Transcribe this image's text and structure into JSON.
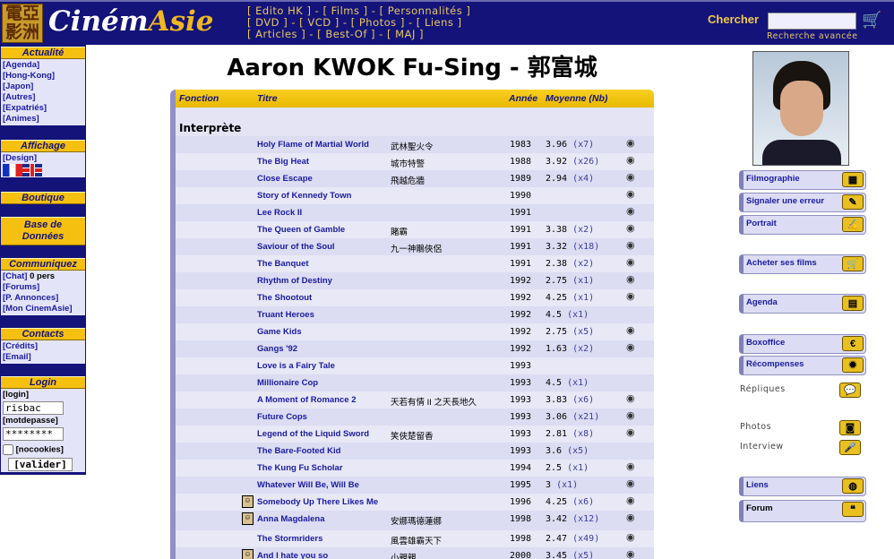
{
  "header": {
    "logo_seal": "電亞影洲",
    "logo_text_a": "Ciném",
    "logo_text_b": "Asie",
    "nav": [
      [
        "Edito HK",
        "Films",
        "Personnalités"
      ],
      [
        "DVD",
        "VCD",
        "Photos",
        "Liens"
      ],
      [
        "Articles",
        "Best-Of",
        "MAJ"
      ]
    ],
    "search_label": "Chercher",
    "search_value": "",
    "advanced_search": "Recherche avancée"
  },
  "sidebar": {
    "actualite": {
      "title": "Actualité",
      "items": [
        "[Agenda]",
        "[Hong-Kong]",
        "[Japon]",
        "[Autres]",
        "[Expatriés]",
        "[Animes]"
      ]
    },
    "affichage": {
      "title": "Affichage",
      "items": [
        "[Design]"
      ]
    },
    "boutique": {
      "title": "Boutique"
    },
    "base": {
      "title": "Base de Données"
    },
    "communiquez": {
      "title": "Communiquez",
      "chat": "[Chat]",
      "chat_count": "0 pers",
      "items": [
        "[Forums]",
        "[P. Annonces]",
        "[Mon CinemAsie]"
      ]
    },
    "contacts": {
      "title": "Contacts",
      "items": [
        "[Crédits]",
        "[Email]"
      ]
    },
    "login": {
      "title": "Login",
      "login_label": "[login]",
      "login_value": "risbac",
      "password_label": "[motdepasse]",
      "password_value": "********",
      "nocookies": "[nocookies]",
      "submit": "[valider]"
    }
  },
  "main": {
    "title": "Aaron KWOK Fu-Sing - 郭富城",
    "columns": [
      "Fonction",
      "Titre",
      "Année",
      "Moyenne (Nb)"
    ],
    "section": "Interprète",
    "rows": [
      {
        "title": "Holy Flame of Martial World",
        "chinese": "武林聖火令",
        "year": "1983",
        "avg": "3.96",
        "nb": "(x7)",
        "eye": true,
        "pic": false
      },
      {
        "title": "The Big Heat",
        "chinese": "城市特警",
        "year": "1988",
        "avg": "3.92",
        "nb": "(x26)",
        "eye": true,
        "pic": false
      },
      {
        "title": "Close Escape",
        "chinese": "飛越危牆",
        "year": "1989",
        "avg": "2.94",
        "nb": "(x4)",
        "eye": true,
        "pic": false
      },
      {
        "title": "Story of Kennedy Town",
        "chinese": "",
        "year": "1990",
        "avg": "",
        "nb": "",
        "eye": true,
        "pic": false
      },
      {
        "title": "Lee Rock II",
        "chinese": "",
        "year": "1991",
        "avg": "",
        "nb": "",
        "eye": true,
        "pic": false
      },
      {
        "title": "The Queen of Gamble",
        "chinese": "賭霸",
        "year": "1991",
        "avg": "3.38",
        "nb": "(x2)",
        "eye": true,
        "pic": false
      },
      {
        "title": "Saviour of the Soul",
        "chinese": "九一神鵰俠侶",
        "year": "1991",
        "avg": "3.32",
        "nb": "(x18)",
        "eye": true,
        "pic": false
      },
      {
        "title": "The Banquet",
        "chinese": "",
        "year": "1991",
        "avg": "2.38",
        "nb": "(x2)",
        "eye": true,
        "pic": false
      },
      {
        "title": "Rhythm of Destiny",
        "chinese": "",
        "year": "1992",
        "avg": "2.75",
        "nb": "(x1)",
        "eye": true,
        "pic": false
      },
      {
        "title": "The Shootout",
        "chinese": "",
        "year": "1992",
        "avg": "4.25",
        "nb": "(x1)",
        "eye": true,
        "pic": false
      },
      {
        "title": "Truant Heroes",
        "chinese": "",
        "year": "1992",
        "avg": "4.5",
        "nb": "(x1)",
        "eye": false,
        "pic": false
      },
      {
        "title": "Game Kids",
        "chinese": "",
        "year": "1992",
        "avg": "2.75",
        "nb": "(x5)",
        "eye": true,
        "pic": false
      },
      {
        "title": "Gangs '92",
        "chinese": "",
        "year": "1992",
        "avg": "1.63",
        "nb": "(x2)",
        "eye": true,
        "pic": false
      },
      {
        "title": "Love is a Fairy Tale",
        "chinese": "",
        "year": "1993",
        "avg": "",
        "nb": "",
        "eye": false,
        "pic": false
      },
      {
        "title": "Millionaire Cop",
        "chinese": "",
        "year": "1993",
        "avg": "4.5",
        "nb": "(x1)",
        "eye": false,
        "pic": false
      },
      {
        "title": "A Moment of Romance 2",
        "chinese": "天若有情 II 之天長地久",
        "year": "1993",
        "avg": "3.83",
        "nb": "(x6)",
        "eye": true,
        "pic": false
      },
      {
        "title": "Future Cops",
        "chinese": "",
        "year": "1993",
        "avg": "3.06",
        "nb": "(x21)",
        "eye": true,
        "pic": false
      },
      {
        "title": "Legend of the Liquid Sword",
        "chinese": "笑俠楚留香",
        "year": "1993",
        "avg": "2.81",
        "nb": "(x8)",
        "eye": true,
        "pic": false
      },
      {
        "title": "The Bare-Footed Kid",
        "chinese": "",
        "year": "1993",
        "avg": "3.6",
        "nb": "(x5)",
        "eye": false,
        "pic": false
      },
      {
        "title": "The Kung Fu Scholar",
        "chinese": "",
        "year": "1994",
        "avg": "2.5",
        "nb": "(x1)",
        "eye": true,
        "pic": false
      },
      {
        "title": "Whatever Will Be, Will Be",
        "chinese": "",
        "year": "1995",
        "avg": "3",
        "nb": "(x1)",
        "eye": true,
        "pic": false
      },
      {
        "title": "Somebody Up There Likes Me",
        "chinese": "",
        "year": "1996",
        "avg": "4.25",
        "nb": "(x6)",
        "eye": true,
        "pic": true
      },
      {
        "title": "Anna Magdalena",
        "chinese": "安娜瑪德蓮娜",
        "year": "1998",
        "avg": "3.42",
        "nb": "(x12)",
        "eye": true,
        "pic": true
      },
      {
        "title": "The Stormriders",
        "chinese": "風雲雄霸天下",
        "year": "1998",
        "avg": "2.47",
        "nb": "(x49)",
        "eye": true,
        "pic": false
      },
      {
        "title": "And I hate you so",
        "chinese": "小親親",
        "year": "2000",
        "avg": "3.45",
        "nb": "(x5)",
        "eye": true,
        "pic": true
      }
    ]
  },
  "right": {
    "buttons": [
      {
        "label": "Filmographie",
        "icon": "film-icon",
        "glyph": "▦",
        "style": "button"
      },
      {
        "label": "Signaler une erreur",
        "icon": "edit-icon",
        "glyph": "✎",
        "style": "button"
      },
      {
        "label": "Portrait",
        "icon": "pen-icon",
        "glyph": "✍",
        "style": "button"
      },
      {
        "label": "Acheter ses films",
        "icon": "cart-icon",
        "glyph": "🛒",
        "style": "button"
      },
      {
        "label": "Agenda",
        "icon": "calendar-icon",
        "glyph": "▤",
        "style": "button"
      },
      {
        "label": "Boxoffice",
        "icon": "euro-icon",
        "glyph": "€",
        "style": "button"
      },
      {
        "label": "Récompenses",
        "icon": "award-icon",
        "glyph": "✹",
        "style": "button"
      },
      {
        "label": "Répliques",
        "icon": "speech-icon",
        "glyph": "💬",
        "style": "plain"
      },
      {
        "label": "Photos",
        "icon": "camera-icon",
        "glyph": "◙",
        "style": "plain"
      },
      {
        "label": "Interview",
        "icon": "microphone-icon",
        "glyph": "🎤",
        "style": "plain"
      },
      {
        "label": "Liens",
        "icon": "globe-icon",
        "glyph": "◍",
        "style": "button"
      },
      {
        "label": "Forum",
        "icon": "chat-bubbles-icon",
        "glyph": "❝",
        "style": "button"
      }
    ]
  },
  "colors": {
    "navy": "#13137a",
    "gold": "#f5c010",
    "lavender": "#e4e4f4",
    "link": "#1a1aa0"
  }
}
